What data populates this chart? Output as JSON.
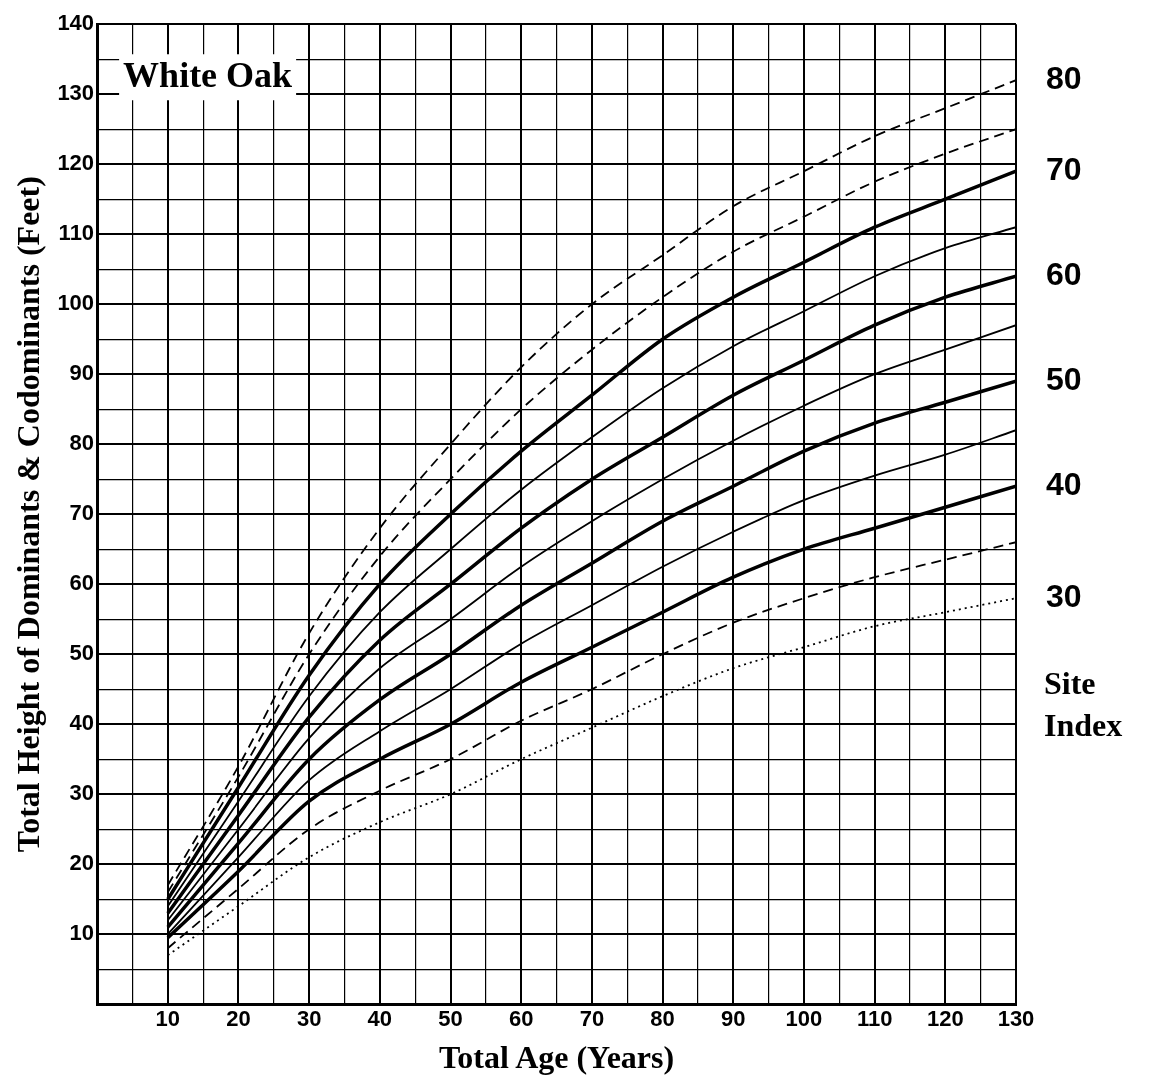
{
  "chart_data": {
    "type": "line",
    "title": "White Oak",
    "xlabel": "Total Age (Years)",
    "ylabel": "Total Height of Dominants & Codominants (Feet)",
    "legend_title": "Site Index",
    "x": [
      10,
      20,
      30,
      40,
      50,
      60,
      70,
      80,
      90,
      100,
      110,
      120,
      130
    ],
    "series": [
      {
        "name": "80",
        "color": "#000000",
        "line_style": "dashed",
        "values": [
          17,
          34,
          53,
          68,
          80,
          91,
          100,
          107,
          114,
          119,
          124,
          128,
          132
        ]
      },
      {
        "color": "#000000",
        "line_style": "dashed",
        "values": [
          16,
          32.5,
          50,
          64,
          75,
          85,
          93.5,
          101,
          107.5,
          112.5,
          117.5,
          121.5,
          125
        ]
      },
      {
        "name": "70",
        "color": "#000000",
        "line_style": "solid",
        "values": [
          15,
          31,
          47,
          60,
          70,
          79,
          87,
          95,
          101,
          106,
          111,
          115,
          119
        ]
      },
      {
        "color": "#000000",
        "line_style": "solid",
        "values": [
          14,
          29,
          44,
          56,
          65,
          73.5,
          81,
          88,
          94,
          99,
          104,
          108,
          111
        ]
      },
      {
        "name": "60",
        "color": "#000000",
        "line_style": "solid",
        "values": [
          13,
          27,
          41,
          52,
          60,
          68,
          75,
          81,
          87,
          92,
          97,
          101,
          104
        ]
      },
      {
        "color": "#000000",
        "line_style": "solid",
        "values": [
          12,
          25,
          38,
          48,
          55,
          62.5,
          69,
          75,
          80.5,
          85.5,
          90,
          93.5,
          97
        ]
      },
      {
        "name": "50",
        "color": "#000000",
        "line_style": "solid",
        "values": [
          11,
          23,
          35,
          43.5,
          50,
          57,
          63,
          69,
          74,
          79,
          83,
          86,
          89
        ]
      },
      {
        "color": "#000000",
        "line_style": "solid",
        "values": [
          10,
          21,
          32,
          39,
          45,
          51.5,
          57,
          62.5,
          67.5,
          72,
          75.5,
          78.5,
          82
        ]
      },
      {
        "name": "40",
        "color": "#000000",
        "line_style": "solid",
        "values": [
          9.5,
          19,
          29,
          35,
          40,
          46,
          51,
          56,
          61,
          65,
          68,
          71,
          74
        ]
      },
      {
        "color": "#000000",
        "line_style": "dashed",
        "values": [
          8,
          16.5,
          25,
          30.5,
          35,
          40.5,
          45,
          50,
          54.5,
          58,
          61,
          63.5,
          66
        ]
      },
      {
        "name": "30",
        "color": "#000000",
        "line_style": "dotted",
        "values": [
          7,
          14,
          21,
          26,
          30,
          35,
          39.5,
          44,
          48,
          51,
          54,
          56,
          58
        ]
      }
    ],
    "xlim": [
      0,
      130
    ],
    "xticks": [
      {
        "value": 0,
        "label": null
      },
      {
        "value": 5,
        "label": null
      },
      10,
      {
        "value": 15,
        "label": null
      },
      20,
      {
        "value": 25,
        "label": null
      },
      30,
      {
        "value": 35,
        "label": null
      },
      40,
      {
        "value": 45,
        "label": null
      },
      50,
      {
        "value": 55,
        "label": null
      },
      60,
      {
        "value": 65,
        "label": null
      },
      70,
      {
        "value": 75,
        "label": null
      },
      80,
      {
        "value": 85,
        "label": null
      },
      90,
      {
        "value": 95,
        "label": null
      },
      100,
      {
        "value": 105,
        "label": null
      },
      110,
      {
        "value": 115,
        "label": null
      },
      120,
      {
        "value": 125,
        "label": null
      },
      130
    ],
    "ylim": [
      0,
      140
    ],
    "yticks": [
      {
        "value": 0,
        "label": null
      },
      {
        "value": 5,
        "label": null
      },
      10,
      {
        "value": 15,
        "label": null
      },
      20,
      {
        "value": 25,
        "label": null
      },
      30,
      {
        "value": 35,
        "label": null
      },
      40,
      {
        "value": 45,
        "label": null
      },
      50,
      {
        "value": 55,
        "label": null
      },
      60,
      {
        "value": 65,
        "label": null
      },
      70,
      {
        "value": 75,
        "label": null
      },
      80,
      {
        "value": 85,
        "label": null
      },
      90,
      {
        "value": 95,
        "label": null
      },
      100,
      {
        "value": 105,
        "label": null
      },
      110,
      {
        "value": 115,
        "label": null
      },
      120,
      {
        "value": 125,
        "label": null
      },
      130,
      {
        "value": 135,
        "label": null
      },
      140
    ],
    "grid": true,
    "legend": "right",
    "marker": "none"
  }
}
